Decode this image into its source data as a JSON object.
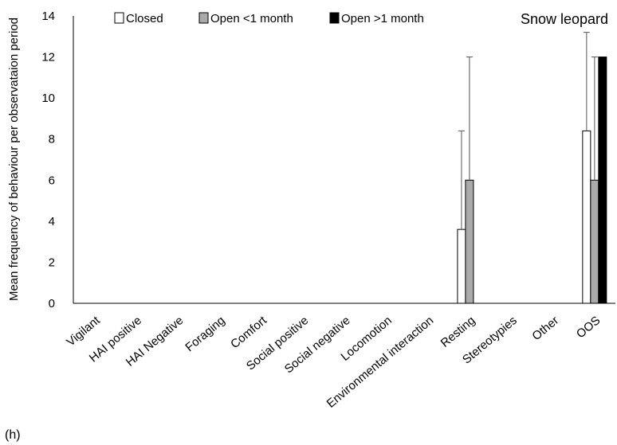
{
  "panel_label": "(h)",
  "chart_data": {
    "type": "bar",
    "title": "Snow leopard",
    "ylabel": "Mean frequency of behaviour per observataion period",
    "xlabel": "",
    "ylim": [
      0,
      14
    ],
    "yticks": [
      0,
      2,
      4,
      6,
      8,
      10,
      12,
      14
    ],
    "grid": false,
    "legend_position": "top",
    "categories": [
      "Vigilant",
      "HAI positive",
      "HAI Negative",
      "Foraging",
      "Comfort",
      "Social positive",
      "Social negative",
      "Locomotion",
      "Environmental interaction",
      "Resting",
      "Stereotypies",
      "Other",
      "OOS"
    ],
    "series": [
      {
        "name": "Closed",
        "color": "#ffffff",
        "values": [
          0,
          0,
          0,
          0,
          0,
          0,
          0,
          0,
          0,
          3.6,
          0,
          0,
          8.4
        ],
        "error": [
          0,
          0,
          0,
          0,
          0,
          0,
          0,
          0,
          0,
          4.8,
          0,
          0,
          4.8
        ]
      },
      {
        "name": "Open <1 month",
        "color": "#aaaaaa",
        "values": [
          0,
          0,
          0,
          0,
          0,
          0,
          0,
          0,
          0,
          6,
          0,
          0,
          6
        ],
        "error": [
          0,
          0,
          0,
          0,
          0,
          0,
          0,
          0,
          0,
          6,
          0,
          0,
          6
        ]
      },
      {
        "name": "Open >1 month",
        "color": "#000000",
        "values": [
          0,
          0,
          0,
          0,
          0,
          0,
          0,
          0,
          0,
          0,
          0,
          0,
          12
        ],
        "error": [
          0,
          0,
          0,
          0,
          0,
          0,
          0,
          0,
          0,
          0,
          0,
          0,
          0
        ]
      }
    ]
  }
}
